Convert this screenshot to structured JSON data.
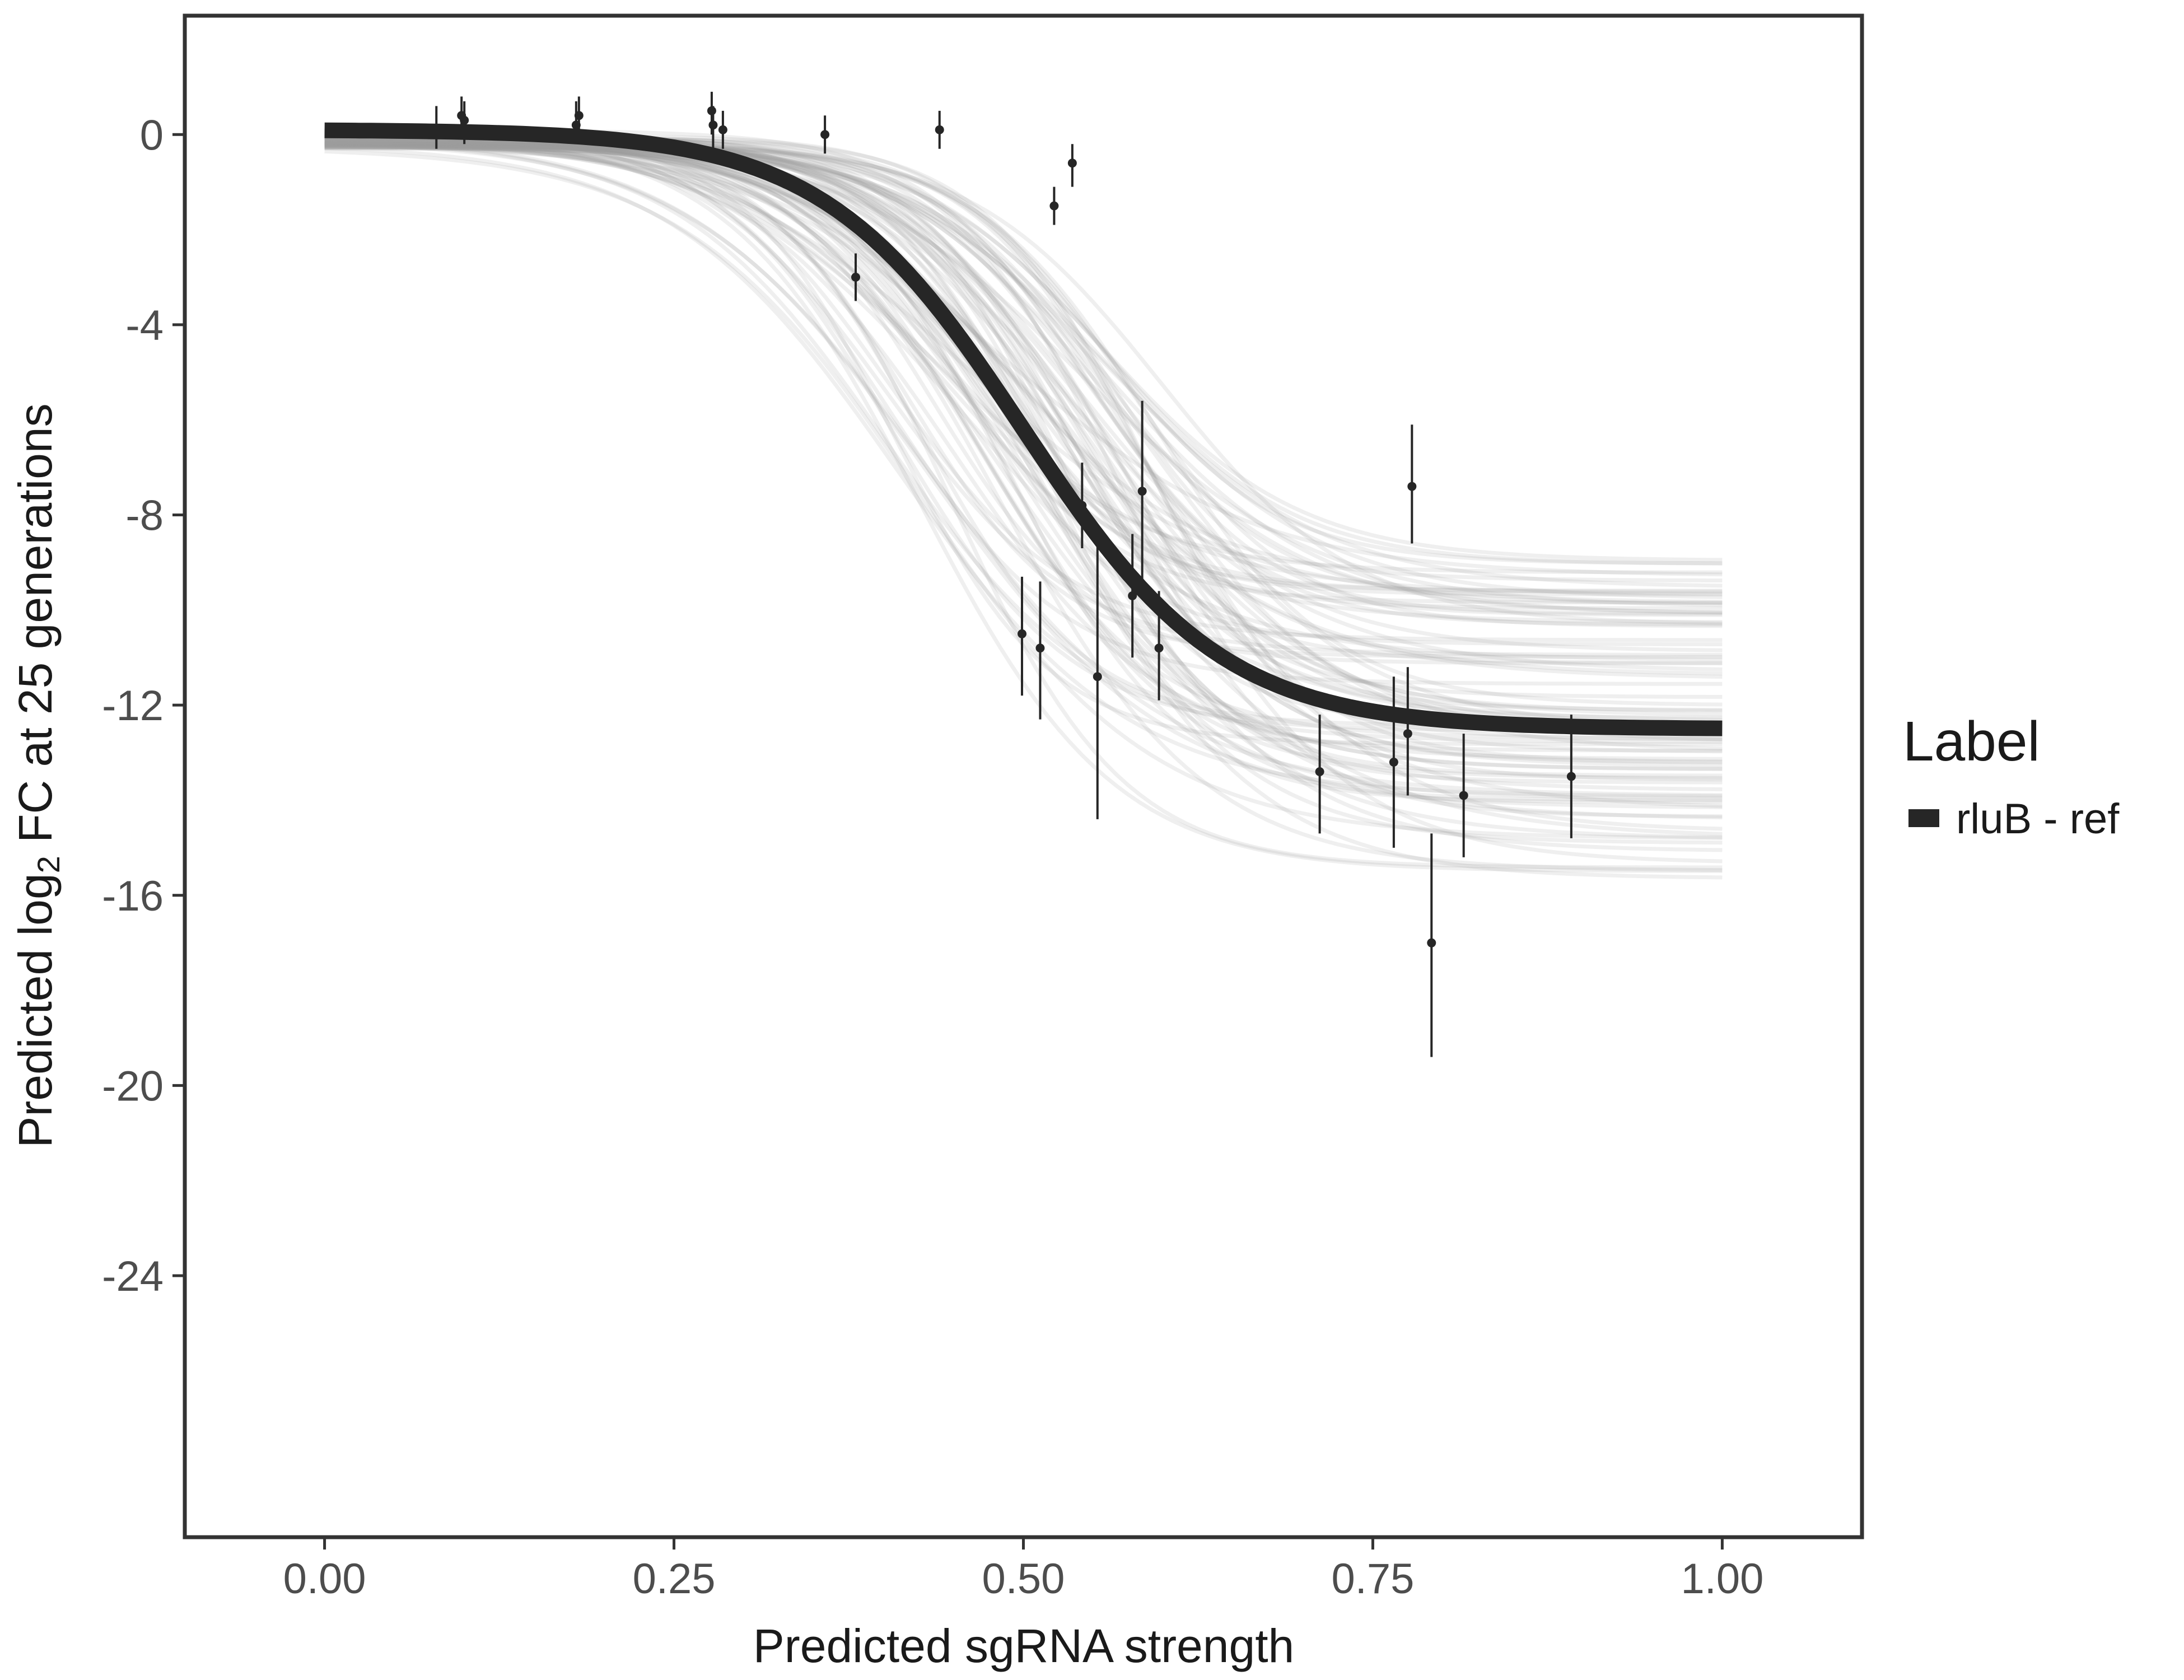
{
  "chart_data": {
    "type": "line",
    "title": "",
    "xlabel": "Predicted sgRNA strength",
    "ylabel_parts": {
      "before": "Predicted  log",
      "subscript": "2",
      "after": " FC at 25 generations"
    },
    "xlim": [
      -0.1,
      1.1
    ],
    "ylim": [
      -29.5,
      2.5
    ],
    "x_ticks": [
      0.0,
      0.25,
      0.5,
      0.75,
      1.0
    ],
    "x_tick_labels": [
      "0.00",
      "0.25",
      "0.50",
      "0.75",
      "1.00"
    ],
    "y_ticks": [
      0,
      -4,
      -8,
      -12,
      -16,
      -20,
      -24
    ],
    "y_tick_labels": [
      "0",
      "-4",
      "-8",
      "-12",
      "-16",
      "-20",
      "-24"
    ],
    "grid": false,
    "legend": {
      "title": "Label",
      "position": "right",
      "entries": [
        {
          "label": "rluB - ref",
          "color": "#262626"
        }
      ]
    },
    "fit_curve": {
      "name": "rluB - ref",
      "model": "logistic",
      "top": 0.1,
      "bottom": -12.5,
      "midpoint": 0.5,
      "slope": 14,
      "color": "#262626"
    },
    "posterior_curves": {
      "count": 90,
      "top_range": [
        -0.3,
        0.1
      ],
      "bottom_range": [
        -15.7,
        -8.9
      ],
      "midpoint_range": [
        0.4,
        0.6
      ],
      "slope_range": [
        11,
        18
      ],
      "color": "#9e9e9e"
    },
    "points": [
      {
        "x": 0.08,
        "y": 0.1,
        "ymin": -0.3,
        "ymax": 0.6
      },
      {
        "x": 0.098,
        "y": 0.4,
        "ymin": 0.0,
        "ymax": 0.8
      },
      {
        "x": 0.1,
        "y": 0.3,
        "ymin": -0.2,
        "ymax": 0.7
      },
      {
        "x": 0.18,
        "y": 0.2,
        "ymin": -0.2,
        "ymax": 0.7
      },
      {
        "x": 0.182,
        "y": 0.4,
        "ymin": 0.0,
        "ymax": 0.8
      },
      {
        "x": 0.277,
        "y": 0.5,
        "ymin": 0.0,
        "ymax": 0.9
      },
      {
        "x": 0.278,
        "y": 0.2,
        "ymin": -0.3,
        "ymax": 0.6
      },
      {
        "x": 0.285,
        "y": 0.1,
        "ymin": -0.3,
        "ymax": 0.5
      },
      {
        "x": 0.358,
        "y": 0.0,
        "ymin": -0.4,
        "ymax": 0.4
      },
      {
        "x": 0.38,
        "y": -3.0,
        "ymin": -3.5,
        "ymax": -2.5
      },
      {
        "x": 0.44,
        "y": 0.1,
        "ymin": -0.3,
        "ymax": 0.5
      },
      {
        "x": 0.499,
        "y": -10.5,
        "ymin": -11.8,
        "ymax": -9.3
      },
      {
        "x": 0.512,
        "y": -10.8,
        "ymin": -12.3,
        "ymax": -9.4
      },
      {
        "x": 0.522,
        "y": -1.5,
        "ymin": -1.9,
        "ymax": -1.1
      },
      {
        "x": 0.535,
        "y": -0.6,
        "ymin": -1.1,
        "ymax": -0.2
      },
      {
        "x": 0.542,
        "y": -7.8,
        "ymin": -8.7,
        "ymax": -6.9
      },
      {
        "x": 0.553,
        "y": -11.4,
        "ymin": -14.4,
        "ymax": -8.4
      },
      {
        "x": 0.578,
        "y": -9.7,
        "ymin": -11.0,
        "ymax": -8.4
      },
      {
        "x": 0.585,
        "y": -7.5,
        "ymin": -9.4,
        "ymax": -5.6
      },
      {
        "x": 0.597,
        "y": -10.8,
        "ymin": -11.9,
        "ymax": -9.6
      },
      {
        "x": 0.712,
        "y": -13.4,
        "ymin": -14.7,
        "ymax": -12.2
      },
      {
        "x": 0.765,
        "y": -13.2,
        "ymin": -15.0,
        "ymax": -11.4
      },
      {
        "x": 0.775,
        "y": -12.6,
        "ymin": -13.9,
        "ymax": -11.2
      },
      {
        "x": 0.778,
        "y": -7.4,
        "ymin": -8.6,
        "ymax": -6.1
      },
      {
        "x": 0.792,
        "y": -17.0,
        "ymin": -19.4,
        "ymax": -14.7
      },
      {
        "x": 0.815,
        "y": -13.9,
        "ymin": -15.2,
        "ymax": -12.6
      },
      {
        "x": 0.892,
        "y": -13.5,
        "ymin": -14.8,
        "ymax": -12.2
      }
    ]
  }
}
